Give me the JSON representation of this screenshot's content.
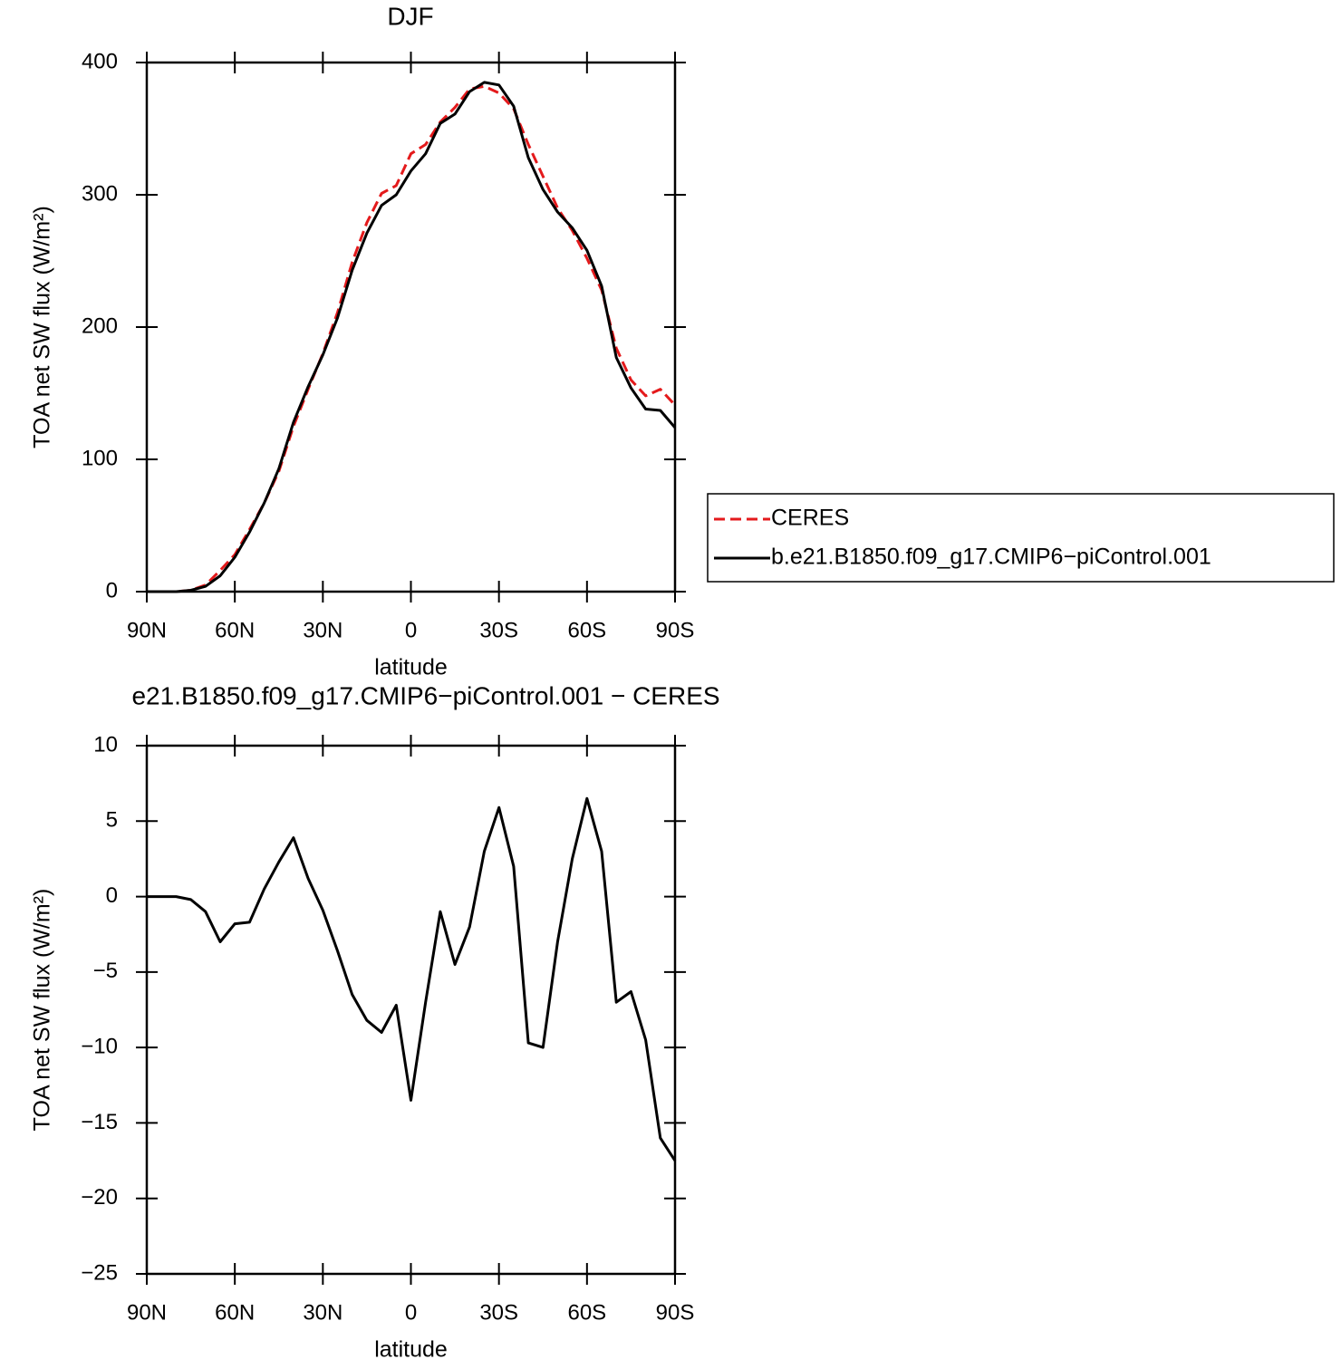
{
  "chart_data": [
    {
      "type": "line",
      "title": "DJF",
      "xlabel": "latitude",
      "ylabel": "TOA net SW flux (W/m²)",
      "x": [
        90,
        85,
        80,
        75,
        70,
        65,
        60,
        55,
        50,
        45,
        40,
        35,
        30,
        25,
        20,
        15,
        10,
        5,
        0,
        -5,
        -10,
        -15,
        -20,
        -25,
        -30,
        -35,
        -40,
        -45,
        -50,
        -55,
        -60,
        -65,
        -70,
        -75,
        -80,
        -85,
        -90
      ],
      "series": [
        {
          "name": "CERES",
          "color": "#e41a1c",
          "dashed": true,
          "values": [
            0,
            0,
            0,
            1,
            5,
            16,
            28,
            47,
            67,
            91,
            125,
            153,
            180,
            211,
            249,
            279,
            301,
            307,
            331,
            338,
            355,
            366,
            380,
            382,
            377,
            365,
            338,
            314,
            290,
            273,
            252,
            228,
            184,
            160,
            148,
            153,
            141
          ]
        },
        {
          "name": "b.e21.B1850.f09_g17.CMIP6−piControl.001",
          "color": "#000000",
          "dashed": false,
          "values": [
            0,
            0,
            0,
            1,
            4,
            12,
            26,
            45,
            67,
            93,
            128,
            155,
            179,
            207,
            243,
            271,
            292,
            300,
            318,
            331,
            354,
            361,
            378,
            385,
            383,
            367,
            328,
            304,
            287,
            275,
            258,
            231,
            177,
            154,
            138,
            137,
            124
          ]
        }
      ],
      "xlim": [
        90,
        -90
      ],
      "xticks": [
        {
          "value": 90,
          "label": "90N"
        },
        {
          "value": 60,
          "label": "60N"
        },
        {
          "value": 30,
          "label": "30N"
        },
        0,
        {
          "value": -30,
          "label": "30S"
        },
        {
          "value": -60,
          "label": "60S"
        },
        {
          "value": -90,
          "label": "90S"
        }
      ],
      "ylim": [
        0,
        400
      ],
      "yticks": [
        0,
        100,
        200,
        300,
        400
      ],
      "legend": "right"
    },
    {
      "type": "line",
      "title": "e21.B1850.f09_g17.CMIP6−piControl.001 − CERES",
      "xlabel": "latitude",
      "ylabel": "TOA net SW flux (W/m²)",
      "x": [
        90,
        85,
        80,
        75,
        70,
        65,
        60,
        55,
        50,
        45,
        40,
        35,
        30,
        25,
        20,
        15,
        10,
        5,
        0,
        -5,
        -10,
        -15,
        -20,
        -25,
        -30,
        -35,
        -40,
        -45,
        -50,
        -55,
        -60,
        -65,
        -70,
        -75,
        -80,
        -85,
        -90
      ],
      "series": [
        {
          "color": "#000000",
          "dashed": false,
          "values": [
            0,
            0,
            0,
            -0.2,
            -1,
            -3,
            -1.8,
            -1.7,
            0.5,
            2.3,
            3.9,
            1.2,
            -0.9,
            -3.6,
            -6.5,
            -8.2,
            -9,
            -7.2,
            -13.5,
            -7,
            -1,
            -4.5,
            -2,
            3,
            5.9,
            2,
            -9.7,
            -10,
            -3,
            2.5,
            6.5,
            3,
            -7,
            -6.3,
            -9.5,
            -16,
            -17.5
          ]
        }
      ],
      "xlim": [
        90,
        -90
      ],
      "xticks": [
        {
          "value": 90,
          "label": "90N"
        },
        {
          "value": 60,
          "label": "60N"
        },
        {
          "value": 30,
          "label": "30N"
        },
        0,
        {
          "value": -30,
          "label": "30S"
        },
        {
          "value": -60,
          "label": "60S"
        },
        {
          "value": -90,
          "label": "90S"
        }
      ],
      "ylim": [
        -25,
        10
      ],
      "yticks": [
        {
          "value": -25,
          "label": "−25"
        },
        {
          "value": -20,
          "label": "−20"
        },
        {
          "value": -15,
          "label": "−15"
        },
        {
          "value": -10,
          "label": "−10"
        },
        {
          "value": -5,
          "label": "−5"
        },
        0,
        5,
        10
      ]
    }
  ]
}
